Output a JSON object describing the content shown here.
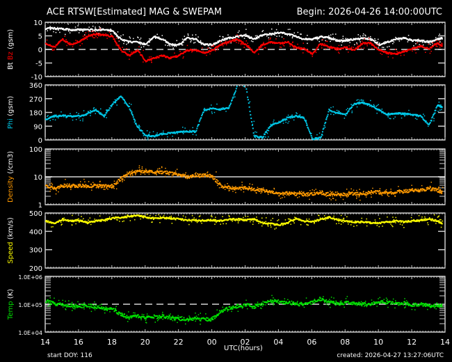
{
  "header": {
    "title": "ACE RTSW[Estimated] MAG & SWEPAM",
    "begin": "Begin: 2026-04-26 14:00:00UTC"
  },
  "footer": {
    "start_doy": "start DOY: 116",
    "created": "created: 2026-04-27 13:27:06UTC",
    "xlabel": "UTC(hours)"
  },
  "colors": {
    "background": "#000000",
    "axes": "#ffffff",
    "bt": "#ffffff",
    "bz": "#ff0000",
    "phi": "#00c8e8",
    "density": "#ff9900",
    "speed": "#ffff00",
    "temp": "#00e000"
  },
  "chart_data": [
    {
      "type": "scatter",
      "panel": "mag_field",
      "ylabel_parts": [
        "Bt",
        "Bz",
        "(gsm)"
      ],
      "ylim": [
        -10,
        10
      ],
      "yticks": [
        10,
        5,
        0,
        -5,
        -10
      ],
      "yticklabels": [
        "10",
        "5",
        "0",
        "-5",
        "-10"
      ],
      "reference_line": {
        "y": 0,
        "style": "dashed"
      },
      "x_hours": [
        14,
        14.5,
        15,
        15.5,
        16,
        16.5,
        17,
        17.5,
        18,
        18.5,
        19,
        19.5,
        20,
        20.5,
        21,
        21.5,
        22,
        22.5,
        23,
        23.5,
        24,
        24.5,
        25,
        25.5,
        26,
        26.5,
        27,
        27.5,
        28,
        28.5,
        29,
        29.5,
        30,
        30.5,
        31,
        31.5,
        32,
        32.5,
        33,
        33.5,
        34,
        34.5,
        35,
        35.5,
        36,
        36.5,
        37,
        37.5,
        37.8
      ],
      "series": [
        {
          "name": "Bt",
          "color": "#ffffff",
          "values": [
            8,
            8,
            7.8,
            7.5,
            7.5,
            7.5,
            7.5,
            7.5,
            7,
            4,
            3,
            3,
            2,
            5,
            4,
            2,
            2,
            4.5,
            4,
            2,
            2,
            3.5,
            4.5,
            5,
            5.5,
            4,
            5.5,
            6,
            6.5,
            6,
            5,
            4,
            4,
            5,
            4.5,
            3.5,
            3.5,
            4,
            4.5,
            4,
            2,
            3,
            4,
            4.5,
            3.5,
            3.5,
            3,
            4,
            4.5
          ]
        },
        {
          "name": "Bz",
          "color": "#ff0000",
          "values": [
            2.5,
            1,
            4,
            2,
            3,
            5,
            6,
            5.5,
            5,
            0,
            -2,
            0,
            -4,
            -3,
            -2,
            -3,
            -2,
            0,
            0,
            -1,
            0,
            2,
            3,
            4,
            2,
            -1,
            2,
            3,
            2.5,
            3,
            1,
            0.5,
            -1.5,
            2.5,
            1,
            0.5,
            1,
            0,
            2.5,
            2.5,
            0,
            -1,
            -1.5,
            -0.5,
            0.5,
            1.5,
            0.5,
            2.5,
            1.5
          ]
        }
      ]
    },
    {
      "type": "scatter",
      "panel": "phi",
      "ylabel_parts": [
        "Phi",
        "(gsm)"
      ],
      "ylim": [
        0,
        360
      ],
      "yticks": [
        360,
        270,
        180,
        90,
        0
      ],
      "yticklabels": [
        "360",
        "270",
        "180",
        "90",
        "0"
      ],
      "x_hours": [
        14,
        14.5,
        15,
        15.5,
        16,
        16.5,
        17,
        17.5,
        18,
        18.5,
        19,
        19.5,
        20,
        20.5,
        21,
        21.5,
        22,
        22.5,
        23,
        23.5,
        24,
        24.5,
        25,
        25.5,
        26,
        26.5,
        27,
        27.5,
        28,
        28.5,
        29,
        29.5,
        30,
        30.5,
        31,
        31.5,
        32,
        32.5,
        33,
        33.5,
        34,
        34.5,
        35,
        35.5,
        36,
        36.5,
        37,
        37.5,
        37.8
      ],
      "series": [
        {
          "name": "Phi",
          "color": "#00c8e8",
          "values": [
            140,
            160,
            165,
            160,
            160,
            175,
            200,
            160,
            240,
            290,
            220,
            90,
            35,
            30,
            45,
            50,
            55,
            60,
            60,
            200,
            210,
            205,
            215,
            360,
            360,
            30,
            20,
            100,
            120,
            150,
            160,
            150,
            10,
            20,
            200,
            180,
            170,
            240,
            250,
            230,
            200,
            170,
            180,
            175,
            170,
            160,
            100,
            230,
            220
          ]
        }
      ]
    },
    {
      "type": "scatter",
      "panel": "density",
      "ylabel_parts": [
        "Density",
        "(/cm3)"
      ],
      "yscale": "log",
      "ylim": [
        1,
        100
      ],
      "yticks": [
        100,
        10,
        1
      ],
      "yticklabels": [
        "100",
        "10",
        "1"
      ],
      "reference_line": {
        "y": 10,
        "style": "solid"
      },
      "x_hours": [
        14,
        14.5,
        15,
        15.5,
        16,
        16.5,
        17,
        17.5,
        18,
        18.5,
        19,
        19.5,
        20,
        20.5,
        21,
        21.5,
        22,
        22.5,
        23,
        23.5,
        24,
        24.5,
        25,
        25.5,
        26,
        26.5,
        27,
        27.5,
        28,
        28.5,
        29,
        29.5,
        30,
        30.5,
        31,
        31.5,
        32,
        32.5,
        33,
        33.5,
        34,
        34.5,
        35,
        35.5,
        36,
        36.5,
        37,
        37.5,
        37.8
      ],
      "series": [
        {
          "name": "Density",
          "color": "#ff9900",
          "values": [
            5,
            4,
            5,
            5,
            5,
            5,
            5,
            5,
            5,
            9,
            14,
            16,
            17,
            16,
            15,
            14,
            12,
            11,
            12,
            12,
            11,
            5,
            4.5,
            4,
            4,
            3.8,
            3.5,
            3,
            2.5,
            2.8,
            2.6,
            2.5,
            2.5,
            2.8,
            2.5,
            2.6,
            2.5,
            2.6,
            2.5,
            3,
            3,
            2.8,
            3,
            3.2,
            3.5,
            3.5,
            4,
            3.5,
            3
          ]
        }
      ]
    },
    {
      "type": "scatter",
      "panel": "speed",
      "ylabel_parts": [
        "Speed",
        "(km/s)"
      ],
      "ylim": [
        200,
        500
      ],
      "yticks": [
        500,
        400,
        300,
        200
      ],
      "yticklabels": [
        "500",
        "400",
        "300",
        "200"
      ],
      "x_hours": [
        14,
        14.5,
        15,
        15.5,
        16,
        16.5,
        17,
        17.5,
        18,
        18.5,
        19,
        19.5,
        20,
        20.5,
        21,
        21.5,
        22,
        22.5,
        23,
        23.5,
        24,
        24.5,
        25,
        25.5,
        26,
        26.5,
        27,
        27.5,
        28,
        28.5,
        29,
        29.5,
        30,
        30.5,
        31,
        31.5,
        32,
        32.5,
        33,
        33.5,
        34,
        34.5,
        35,
        35.5,
        36,
        36.5,
        37,
        37.5,
        37.8
      ],
      "series": [
        {
          "name": "Speed",
          "color": "#ffff00",
          "values": [
            460,
            445,
            470,
            460,
            465,
            450,
            460,
            465,
            475,
            480,
            485,
            490,
            480,
            475,
            478,
            475,
            470,
            465,
            465,
            462,
            465,
            462,
            470,
            470,
            465,
            472,
            450,
            445,
            440,
            450,
            475,
            460,
            455,
            470,
            480,
            465,
            460,
            455,
            455,
            450,
            450,
            455,
            460,
            455,
            460,
            465,
            470,
            460,
            445
          ]
        }
      ]
    },
    {
      "type": "scatter",
      "panel": "temp",
      "ylabel_parts": [
        "Temp",
        "(K)"
      ],
      "yscale": "log",
      "ylim": [
        10000,
        1000000
      ],
      "yticks": [
        1000000,
        100000,
        10000
      ],
      "yticklabels": [
        "1.0E+06",
        "1.0E+05",
        "1.0E+04"
      ],
      "reference_line": {
        "y": 100000,
        "style": "dashed"
      },
      "x_hours": [
        14,
        14.5,
        15,
        15.5,
        16,
        16.5,
        17,
        17.5,
        18,
        18.5,
        19,
        19.5,
        20,
        20.5,
        21,
        21.5,
        22,
        22.5,
        23,
        23.5,
        24,
        24.5,
        25,
        25.5,
        26,
        26.5,
        27,
        27.5,
        28,
        28.5,
        29,
        29.5,
        30,
        30.5,
        31,
        31.5,
        32,
        32.5,
        33,
        33.5,
        34,
        34.5,
        35,
        35.5,
        36,
        36.5,
        37,
        37.5,
        37.8
      ],
      "series": [
        {
          "name": "Temp",
          "color": "#00e000",
          "values": [
            140000,
            110000,
            100000,
            95000,
            90000,
            95000,
            85000,
            75000,
            70000,
            45000,
            35000,
            40000,
            35000,
            38000,
            40000,
            35000,
            32000,
            30000,
            32000,
            30000,
            30000,
            60000,
            75000,
            90000,
            100000,
            85000,
            110000,
            140000,
            130000,
            120000,
            110000,
            105000,
            120000,
            160000,
            130000,
            110000,
            120000,
            115000,
            105000,
            110000,
            130000,
            120000,
            110000,
            115000,
            100000,
            105000,
            95000,
            100000,
            90000
          ]
        }
      ]
    }
  ],
  "xaxis": {
    "range_hours": [
      14,
      38
    ],
    "ticklabels": [
      "14",
      "16",
      "18",
      "20",
      "22",
      "00",
      "02",
      "04",
      "06",
      "08",
      "10",
      "12",
      "14"
    ]
  }
}
